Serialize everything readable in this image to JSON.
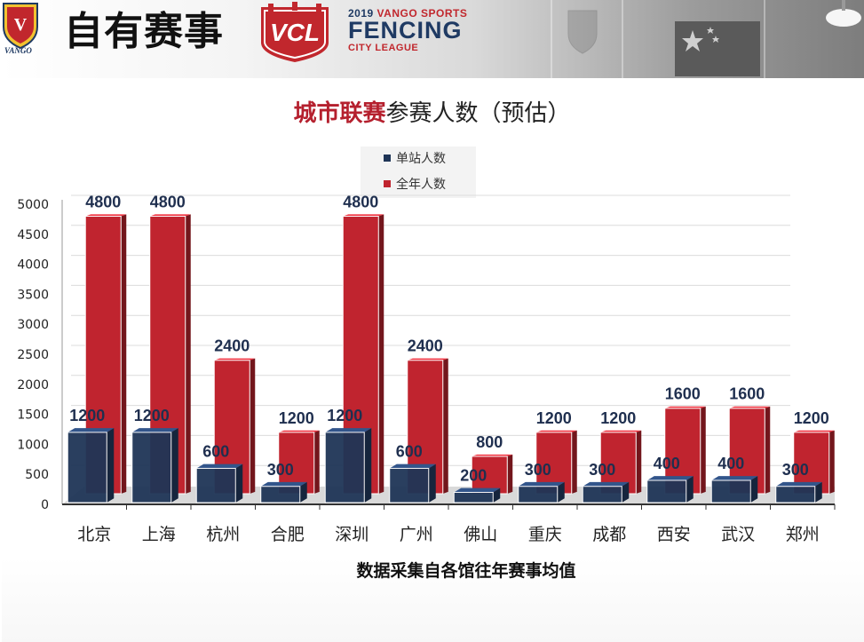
{
  "header": {
    "page_title": "自有赛事",
    "logo_text": "VCL",
    "league_year": "2019",
    "league_line1": "VANGO SPORTS",
    "league_line2": "FENCING",
    "league_line3": "CITY LEAGUE",
    "brand": "VANGO"
  },
  "colors": {
    "series_single": "#1f3557",
    "series_annual": "#c0242f",
    "title_highlight": "#b5202e"
  },
  "chart_data": {
    "type": "bar",
    "title_highlight": "城市联赛",
    "title_rest": "参赛人数（预估）",
    "caption": "数据采集自各馆往年赛事均值",
    "categories": [
      "北京",
      "上海",
      "杭州",
      "合肥",
      "深圳",
      "广州",
      "佛山",
      "重庆",
      "成都",
      "西安",
      "武汉",
      "郑州"
    ],
    "series": [
      {
        "name": "单站人数",
        "values": [
          1200,
          1200,
          600,
          300,
          1200,
          600,
          200,
          300,
          300,
          400,
          400,
          300
        ]
      },
      {
        "name": "全年人数",
        "values": [
          4800,
          4800,
          2400,
          1200,
          4800,
          2400,
          800,
          1200,
          1200,
          1600,
          1600,
          1200
        ]
      }
    ],
    "y_ticks": [
      "0",
      "500",
      "1000",
      "1500",
      "2000",
      "2500",
      "3000",
      "3500",
      "4000",
      "4500",
      "5000"
    ],
    "ylim": [
      0,
      5000
    ],
    "grid": true,
    "legend_position": "top-center",
    "style": "3d-clustered"
  }
}
